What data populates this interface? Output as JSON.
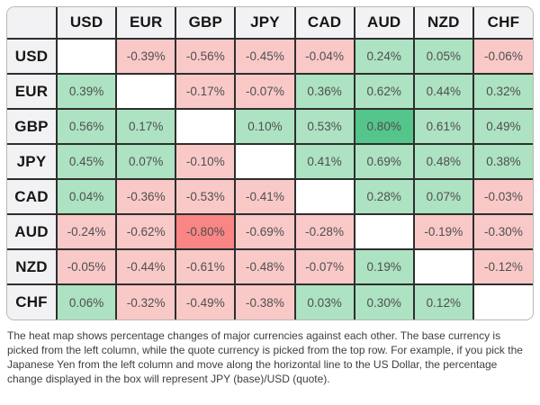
{
  "chart_data": {
    "type": "heatmap",
    "description": "Percentage change heat map of major currency pairs; rows are base currency, columns are quote currency",
    "columns": [
      "USD",
      "EUR",
      "GBP",
      "JPY",
      "CAD",
      "AUD",
      "NZD",
      "CHF"
    ],
    "rows": [
      "USD",
      "EUR",
      "GBP",
      "JPY",
      "CAD",
      "AUD",
      "NZD",
      "CHF"
    ],
    "values": [
      [
        null,
        -0.39,
        -0.56,
        -0.45,
        -0.04,
        0.24,
        0.05,
        -0.06
      ],
      [
        0.39,
        null,
        -0.17,
        -0.07,
        0.36,
        0.62,
        0.44,
        0.32
      ],
      [
        0.56,
        0.17,
        null,
        0.1,
        0.53,
        0.8,
        0.61,
        0.49
      ],
      [
        0.45,
        0.07,
        -0.1,
        null,
        0.41,
        0.69,
        0.48,
        0.38
      ],
      [
        0.04,
        -0.36,
        -0.53,
        -0.41,
        null,
        0.28,
        0.07,
        -0.03
      ],
      [
        -0.24,
        -0.62,
        -0.8,
        -0.69,
        -0.28,
        null,
        -0.19,
        -0.3
      ],
      [
        -0.05,
        -0.44,
        -0.61,
        -0.48,
        -0.07,
        0.19,
        null,
        -0.12
      ],
      [
        0.06,
        -0.32,
        -0.49,
        -0.38,
        0.03,
        0.3,
        0.12,
        null
      ]
    ],
    "cell_labels": [
      [
        "",
        "-0.39%",
        "-0.56%",
        "-0.45%",
        "-0.04%",
        "0.24%",
        "0.05%",
        "-0.06%"
      ],
      [
        "0.39%",
        "",
        "-0.17%",
        "-0.07%",
        "0.36%",
        "0.62%",
        "0.44%",
        "0.32%"
      ],
      [
        "0.56%",
        "0.17%",
        "",
        "0.10%",
        "0.53%",
        "0.80%",
        "0.61%",
        "0.49%"
      ],
      [
        "0.45%",
        "0.07%",
        "-0.10%",
        "",
        "0.41%",
        "0.69%",
        "0.48%",
        "0.38%"
      ],
      [
        "0.04%",
        "-0.36%",
        "-0.53%",
        "-0.41%",
        "",
        "0.28%",
        "0.07%",
        "-0.03%"
      ],
      [
        "-0.24%",
        "-0.62%",
        "-0.80%",
        "-0.69%",
        "-0.28%",
        "",
        "-0.19%",
        "-0.30%"
      ],
      [
        "-0.05%",
        "-0.44%",
        "-0.61%",
        "-0.48%",
        "-0.07%",
        "0.19%",
        "",
        "-0.12%"
      ],
      [
        "0.06%",
        "-0.32%",
        "-0.49%",
        "-0.38%",
        "0.03%",
        "0.30%",
        "0.12%",
        ""
      ]
    ],
    "style_rules": {
      "strong_abs_threshold": 0.8,
      "positive_color": "#ade2c2",
      "positive_strong_color": "#54c58b",
      "negative_color": "#f9c9c8",
      "negative_strong_color": "#f98584",
      "diagonal_color": "#ffffff"
    },
    "legend_position": "none",
    "grid": true
  },
  "footer": {
    "text": "The heat map shows percentage changes of major currencies against each other. The base currency is picked from the left column, while the quote currency is picked from the top row. For example, if you pick the Japanese Yen from the left column and move along the horizontal line to the US Dollar, the percentage change displayed in the box will represent JPY (base)/USD (quote)."
  },
  "colors": {
    "header_bg": "#f2f2f4",
    "grid": "#2e2e2e",
    "outer_border": "#b7b7b7",
    "value_text": "#4f4f4f",
    "label_text": "#161616"
  }
}
